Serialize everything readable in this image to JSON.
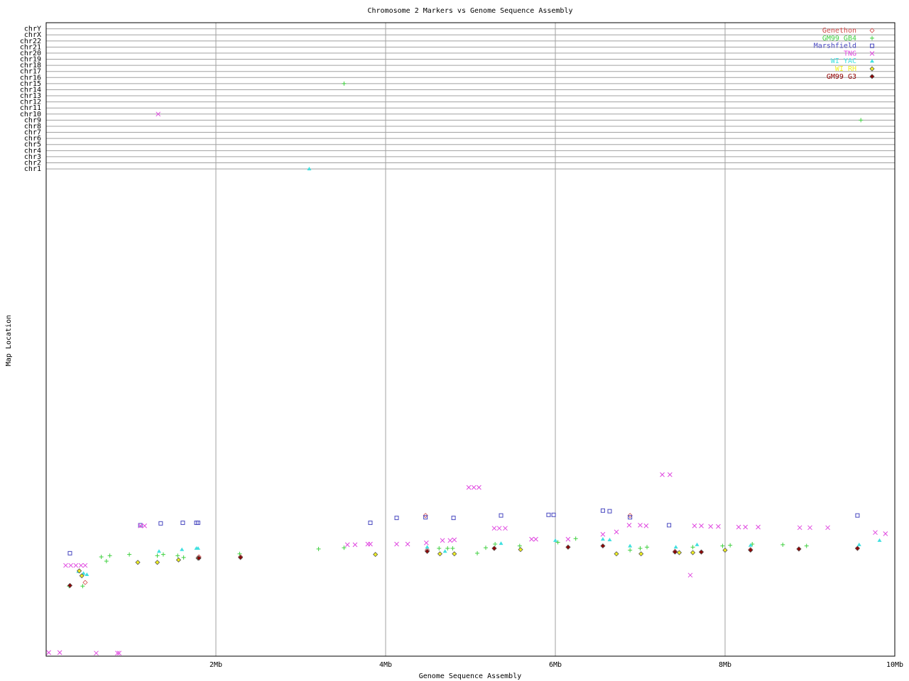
{
  "chart_data": {
    "type": "scatter",
    "title": "Chromosome 2 Markers vs Genome Sequence Assembly",
    "x_label": "Genome Sequence Assembly",
    "y_label": "Map Location",
    "xlim": [
      0,
      10
    ],
    "xticks": [
      {
        "value": 2,
        "label": "2Mb"
      },
      {
        "value": 4,
        "label": "4Mb"
      },
      {
        "value": 6,
        "label": "6Mb"
      },
      {
        "value": 8,
        "label": "8Mb"
      },
      {
        "value": 10,
        "label": "10Mb"
      }
    ],
    "ylim": [
      0,
      104
    ],
    "yticks": [
      {
        "value": 80,
        "label": "chr1"
      },
      {
        "value": 81,
        "label": "chr2"
      },
      {
        "value": 82,
        "label": "chr3"
      },
      {
        "value": 83,
        "label": "chr4"
      },
      {
        "value": 84,
        "label": "chr5"
      },
      {
        "value": 85,
        "label": "chr6"
      },
      {
        "value": 86,
        "label": "chr7"
      },
      {
        "value": 87,
        "label": "chr8"
      },
      {
        "value": 88,
        "label": "chr9"
      },
      {
        "value": 89,
        "label": "chr10"
      },
      {
        "value": 90,
        "label": "chr11"
      },
      {
        "value": 91,
        "label": "chr12"
      },
      {
        "value": 92,
        "label": "chr13"
      },
      {
        "value": 93,
        "label": "chr14"
      },
      {
        "value": 94,
        "label": "chr15"
      },
      {
        "value": 95,
        "label": "chr16"
      },
      {
        "value": 96,
        "label": "chr17"
      },
      {
        "value": 97,
        "label": "chr18"
      },
      {
        "value": 98,
        "label": "chr19"
      },
      {
        "value": 99,
        "label": "chr20"
      },
      {
        "value": 100,
        "label": "chr21"
      },
      {
        "value": 101,
        "label": "chr22"
      },
      {
        "value": 102,
        "label": "chrX"
      },
      {
        "value": 103,
        "label": "chrY"
      }
    ],
    "grid": true,
    "legend": "upper right",
    "series": [
      {
        "name": "Genethon",
        "color": "#d04848",
        "marker": "diamond",
        "x": [
          0.28,
          0.46,
          1.8,
          2.29,
          4.49,
          5.28,
          6.15,
          6.88,
          4.47,
          7.41,
          7.72,
          8.3,
          8.87,
          9.56
        ],
        "values": [
          11.6,
          12.1,
          16.3,
          16.3,
          17.4,
          17.7,
          17.9,
          23.1,
          23.1,
          17.2,
          17.1,
          17.5,
          17.6,
          17.7
        ]
      },
      {
        "name": "GM99 GB4",
        "color": "#40d040",
        "marker": "plus",
        "x": [
          3.51,
          9.6,
          0.27,
          0.43,
          0.65,
          0.71,
          0.75,
          0.98,
          1.31,
          1.38,
          1.55,
          1.62,
          2.28,
          3.21,
          3.51,
          4.63,
          4.73,
          4.79,
          5.08,
          5.18,
          5.29,
          5.58,
          6.03,
          6.24,
          6.88,
          7.0,
          7.08,
          7.62,
          7.97,
          8.06,
          8.32,
          8.68,
          8.96
        ],
        "values": [
          94,
          88,
          11.5,
          11.5,
          16.3,
          15.6,
          16.5,
          16.7,
          16.5,
          16.7,
          16.5,
          16.2,
          16.8,
          17.6,
          17.8,
          17.7,
          17.7,
          17.7,
          16.9,
          17.8,
          18.4,
          18.1,
          18.7,
          19.3,
          17.4,
          17.7,
          17.9,
          17.9,
          18.1,
          18.2,
          18.4,
          18.3,
          18.1
        ]
      },
      {
        "name": "Marshfield",
        "color": "#4848c0",
        "marker": "square",
        "x": [
          0.28,
          1.11,
          1.35,
          1.61,
          1.77,
          1.79,
          3.82,
          4.13,
          4.47,
          4.8,
          5.36,
          5.92,
          5.98,
          6.56,
          6.64,
          6.88,
          7.34,
          9.56
        ],
        "values": [
          16.9,
          21.5,
          21.8,
          21.9,
          21.9,
          21.9,
          21.9,
          22.7,
          22.8,
          22.7,
          23.1,
          23.2,
          23.2,
          23.9,
          23.8,
          22.8,
          21.5,
          23.1
        ]
      },
      {
        "name": "TNG",
        "color": "#e048e0",
        "marker": "cross",
        "x": [
          0.03,
          0.16,
          0.59,
          0.84,
          0.86,
          1.32,
          0.23,
          0.29,
          0.35,
          0.41,
          0.46,
          1.11,
          1.16,
          3.55,
          3.64,
          3.79,
          3.82,
          4.13,
          4.26,
          4.48,
          4.67,
          4.76,
          4.81,
          4.98,
          5.04,
          5.1,
          5.28,
          5.34,
          5.41,
          5.72,
          5.77,
          6.15,
          6.56,
          6.72,
          6.87,
          7.0,
          7.07,
          7.26,
          7.35,
          7.59,
          7.64,
          7.72,
          7.83,
          7.92,
          8.16,
          8.24,
          8.39,
          8.88,
          9.0,
          9.21,
          9.77,
          9.89
        ],
        "values": [
          0.6,
          0.6,
          0.5,
          0.5,
          0.5,
          89,
          14.9,
          14.9,
          14.9,
          14.9,
          14.9,
          21.4,
          21.4,
          18.3,
          18.3,
          18.4,
          18.4,
          18.4,
          18.4,
          18.6,
          19.0,
          19.0,
          19.1,
          27.7,
          27.7,
          27.7,
          21.0,
          21.0,
          21.0,
          19.2,
          19.2,
          19.2,
          20.0,
          20.4,
          21.5,
          21.5,
          21.4,
          29.8,
          29.8,
          13.3,
          21.4,
          21.4,
          21.3,
          21.3,
          21.2,
          21.2,
          21.2,
          21.1,
          21.1,
          21.1,
          20.3,
          20.1
        ]
      },
      {
        "name": "WI YAC",
        "color": "#40e0e0",
        "marker": "triangle",
        "x": [
          3.1,
          0.38,
          0.44,
          0.48,
          1.33,
          1.6,
          1.77,
          1.79,
          4.49,
          4.7,
          5.36,
          6.0,
          6.56,
          6.64,
          6.88,
          7.42,
          7.67,
          8.3,
          9.58,
          9.82
        ],
        "values": [
          80,
          13.9,
          13.6,
          13.4,
          17.2,
          17.5,
          17.7,
          17.7,
          17.9,
          17.2,
          18.5,
          19.0,
          19.2,
          19.1,
          18.1,
          17.9,
          18.3,
          18.2,
          18.3,
          19.0
        ]
      },
      {
        "name": "WI RH",
        "color": "#f0f020",
        "marker": "diamond-filled",
        "x": [
          0.39,
          0.42,
          1.08,
          1.31,
          1.56,
          1.79,
          3.88,
          4.64,
          4.81,
          5.59,
          6.72,
          7.01,
          7.46,
          7.62,
          8.0
        ],
        "values": [
          14.0,
          13.2,
          15.4,
          15.4,
          15.8,
          16.1,
          16.7,
          16.8,
          16.8,
          17.5,
          16.8,
          16.8,
          17.0,
          17.0,
          17.4
        ]
      },
      {
        "name": "GM99 G3",
        "color": "#900000",
        "marker": "diamond-filled",
        "x": [
          0.28,
          1.8,
          2.29,
          4.49,
          5.28,
          6.15,
          6.56,
          7.41,
          7.72,
          8.3,
          8.87,
          9.56
        ],
        "values": [
          11.6,
          16.1,
          16.2,
          17.2,
          17.7,
          17.9,
          18.1,
          17.1,
          17.1,
          17.4,
          17.6,
          17.7
        ]
      }
    ]
  }
}
